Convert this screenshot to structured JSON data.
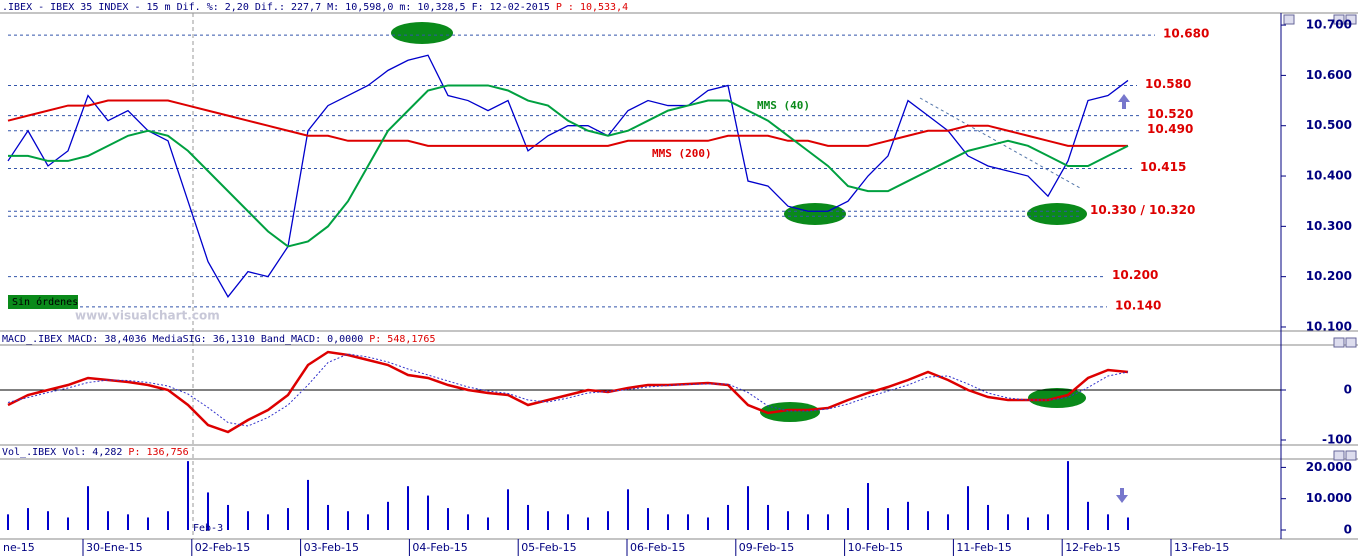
{
  "chart_data": [
    {
      "type": "line",
      "header": ".IBEX - IBEX 35 INDEX -  15 m Dif. %: 2,20 Dif.: 227,7 M: 10,598,0 m: 10,328,5 F: 12-02-2015",
      "header_price": "P : 10,533,4",
      "ylim": [
        10.094,
        10.724
      ],
      "yticks": [
        {
          "value": 10.7,
          "label": "10.700"
        },
        {
          "value": 10.6,
          "label": "10.600"
        },
        {
          "value": 10.5,
          "label": "10.500"
        },
        {
          "value": 10.4,
          "label": "10.400"
        },
        {
          "value": 10.3,
          "label": "10.300"
        },
        {
          "value": 10.2,
          "label": "10.200"
        },
        {
          "value": 10.1,
          "label": "10.100"
        }
      ],
      "series": [
        {
          "color": "#0000cc",
          "values": [
            10.43,
            10.49,
            10.42,
            10.45,
            10.56,
            10.51,
            10.53,
            10.49,
            10.47,
            10.35,
            10.23,
            10.16,
            10.21,
            10.2,
            10.26,
            10.49,
            10.54,
            10.56,
            10.58,
            10.61,
            10.63,
            10.64,
            10.56,
            10.55,
            10.53,
            10.55,
            10.45,
            10.48,
            10.5,
            10.5,
            10.48,
            10.53,
            10.55,
            10.54,
            10.54,
            10.57,
            10.58,
            10.39,
            10.38,
            10.34,
            10.33,
            10.33,
            10.35,
            10.4,
            10.44,
            10.55,
            10.52,
            10.49,
            10.44,
            10.42,
            10.41,
            10.4,
            10.36,
            10.43,
            10.55,
            10.56,
            10.59
          ]
        },
        {
          "name": "MMS (200)",
          "color": "#dd0000",
          "values": [
            10.51,
            10.52,
            10.53,
            10.54,
            10.54,
            10.55,
            10.55,
            10.55,
            10.55,
            10.54,
            10.53,
            10.52,
            10.51,
            10.5,
            10.49,
            10.48,
            10.48,
            10.47,
            10.47,
            10.47,
            10.47,
            10.46,
            10.46,
            10.46,
            10.46,
            10.46,
            10.46,
            10.46,
            10.46,
            10.46,
            10.46,
            10.47,
            10.47,
            10.47,
            10.47,
            10.47,
            10.48,
            10.48,
            10.48,
            10.47,
            10.47,
            10.46,
            10.46,
            10.46,
            10.47,
            10.48,
            10.49,
            10.49,
            10.5,
            10.5,
            10.49,
            10.48,
            10.47,
            10.46,
            10.46,
            10.46,
            10.46
          ]
        },
        {
          "name": "MMS (40)",
          "color": "#00a040",
          "values": [
            10.44,
            10.44,
            10.43,
            10.43,
            10.44,
            10.46,
            10.48,
            10.49,
            10.48,
            10.45,
            10.41,
            10.37,
            10.33,
            10.29,
            10.26,
            10.27,
            10.3,
            10.35,
            10.42,
            10.49,
            10.53,
            10.57,
            10.58,
            10.58,
            10.58,
            10.57,
            10.55,
            10.54,
            10.51,
            10.49,
            10.48,
            10.49,
            10.51,
            10.53,
            10.54,
            10.55,
            10.55,
            10.53,
            10.51,
            10.48,
            10.45,
            10.42,
            10.38,
            10.37,
            10.37,
            10.39,
            10.41,
            10.43,
            10.45,
            10.46,
            10.47,
            10.46,
            10.44,
            10.42,
            10.42,
            10.44,
            10.46
          ]
        }
      ],
      "levels": [
        {
          "values": [
            10.68
          ],
          "label": "10.680"
        },
        {
          "values": [
            10.58
          ],
          "label": "10.580"
        },
        {
          "values": [
            10.52
          ],
          "label": "10.520"
        },
        {
          "values": [
            10.49
          ],
          "label": "10.490"
        },
        {
          "values": [
            10.415
          ],
          "label": "10.415"
        },
        {
          "values": [
            10.33,
            10.32
          ],
          "label": "10.330 / 10.320"
        },
        {
          "values": [
            10.2
          ],
          "label": "10.200"
        },
        {
          "values": [
            10.14
          ],
          "label": "10.140"
        }
      ],
      "annotations": [
        "Sin órdenes",
        "www.visualchart.com"
      ]
    },
    {
      "type": "line",
      "header": "MACD_.IBEX MACD: 38,4036 MediaSIG: 36,1310 Band_MACD: 0,0000",
      "header_price": "P: 548,1765",
      "ylim": [
        -108,
        84
      ],
      "yticks": [
        0,
        -100
      ],
      "series": [
        {
          "color": "#dd0000",
          "values": [
            -30,
            -10,
            0,
            10,
            24,
            20,
            16,
            10,
            0,
            -30,
            -70,
            -84,
            -60,
            -40,
            -10,
            50,
            76,
            70,
            60,
            50,
            30,
            24,
            10,
            0,
            -6,
            -10,
            -30,
            -20,
            -10,
            0,
            -4,
            4,
            10,
            10,
            12,
            14,
            10,
            -30,
            -46,
            -40,
            -40,
            -36,
            -20,
            -6,
            6,
            20,
            36,
            20,
            0,
            -14,
            -20,
            -20,
            -20,
            -10,
            24,
            40,
            36
          ]
        },
        {
          "color": "#3333cc",
          "values": [
            -25,
            -15,
            -5,
            4,
            15,
            20,
            19,
            15,
            8,
            -8,
            -35,
            -65,
            -72,
            -55,
            -30,
            10,
            55,
            72,
            66,
            56,
            42,
            30,
            18,
            6,
            -2,
            -7,
            -20,
            -24,
            -16,
            -6,
            -3,
            1,
            6,
            9,
            11,
            12,
            12,
            -5,
            -32,
            -42,
            -42,
            -38,
            -28,
            -14,
            -2,
            10,
            26,
            28,
            12,
            -6,
            -16,
            -20,
            -20,
            -15,
            5,
            28,
            36
          ]
        }
      ]
    },
    {
      "type": "bar",
      "header": "Vol_.IBEX Vol: 4,282",
      "header_price": "P: 136,756",
      "ylim": [
        0,
        23000
      ],
      "yticks": [
        {
          "value": 20000,
          "label": "20.000"
        },
        {
          "value": 10000,
          "label": "10.000"
        },
        0
      ],
      "color": "#0000cc",
      "values": [
        5000,
        7000,
        6000,
        4000,
        14000,
        6000,
        5000,
        4000,
        6000,
        22000,
        12000,
        8000,
        6000,
        5000,
        7000,
        16000,
        8000,
        6000,
        5000,
        9000,
        14000,
        11000,
        7000,
        5000,
        4000,
        13000,
        8000,
        6000,
        5000,
        4000,
        6000,
        13000,
        7000,
        5000,
        5000,
        4000,
        8000,
        14000,
        8000,
        6000,
        5000,
        5000,
        7000,
        15000,
        7000,
        9000,
        6000,
        5000,
        14000,
        8000,
        5000,
        4000,
        5000,
        22000,
        9000,
        5000,
        4000
      ],
      "annotations": [
        "Feb-3"
      ]
    }
  ],
  "x_axis": {
    "labels": [
      "ne-15",
      "30-Ene-15",
      "02-Feb-15",
      "03-Feb-15",
      "04-Feb-15",
      "05-Feb-15",
      "06-Feb-15",
      "09-Feb-15",
      "10-Feb-15",
      "11-Feb-15",
      "12-Feb-15",
      "13-Feb-15"
    ]
  }
}
